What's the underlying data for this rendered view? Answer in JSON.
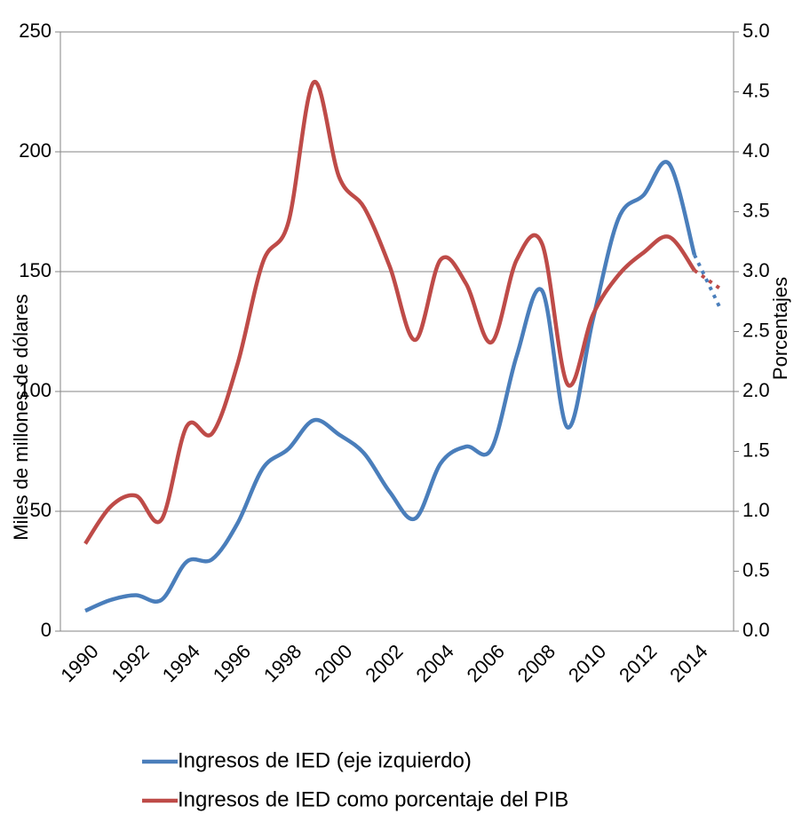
{
  "chart_data": {
    "type": "line",
    "categories": [
      "1990",
      null,
      "1992",
      null,
      "1994",
      null,
      "1996",
      null,
      "1998",
      null,
      "2000",
      null,
      "2002",
      null,
      "2004",
      null,
      "2006",
      null,
      "2008",
      null,
      "2010",
      null,
      "2012",
      null,
      "2014",
      null
    ],
    "y_label": "Miles de millones de dólares",
    "y2_label": "Porcentajes",
    "ylim": [
      0,
      250
    ],
    "yticks": [
      0,
      50,
      100,
      150,
      200,
      250
    ],
    "y2lim": [
      0,
      5
    ],
    "y2ticks": [
      {
        "value": 0,
        "label": "0.0"
      },
      0.5,
      {
        "value": 1,
        "label": "1.0"
      },
      1.5,
      {
        "value": 2,
        "label": "2.0"
      },
      2.5,
      {
        "value": 3,
        "label": "3.0"
      },
      3.5,
      {
        "value": 4,
        "label": "4.0"
      },
      4.5,
      {
        "value": 5,
        "label": "5.0"
      }
    ],
    "grid": true,
    "series": [
      {
        "name": "Ingresos de IED (eje izquierdo)",
        "color": "#4a7ebb",
        "values": [
          8.5,
          13,
          15,
          13,
          29,
          30,
          45,
          68,
          76,
          88,
          82,
          74,
          58,
          47,
          70,
          77,
          76,
          115,
          142,
          85,
          130,
          172,
          182,
          195,
          157,
          135
        ]
      },
      {
        "name": "Ingresos de IED como porcentaje del PIB",
        "color": "#be4b48",
        "axis": "y2",
        "values": [
          0.73,
          1.04,
          1.13,
          0.93,
          1.71,
          1.65,
          2.23,
          3.08,
          3.41,
          4.58,
          3.79,
          3.53,
          3.04,
          2.43,
          3.1,
          2.9,
          2.41,
          3.1,
          3.23,
          2.06,
          2.64,
          2.97,
          3.16,
          3.29,
          3.01,
          2.86
        ]
      }
    ]
  }
}
